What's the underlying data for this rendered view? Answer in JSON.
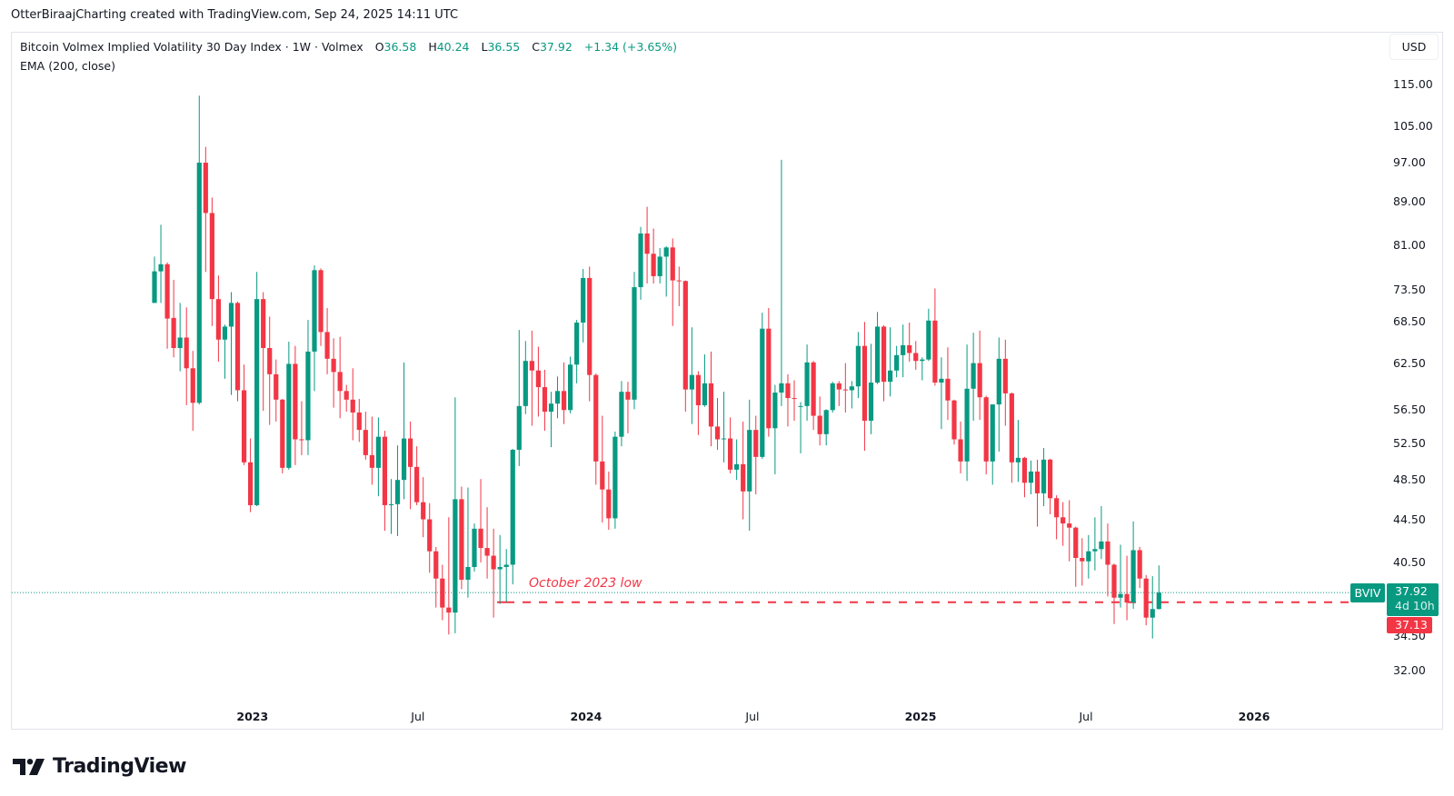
{
  "credit": "OtterBiraajCharting created with TradingView.com, Sep 24, 2025 14:11 UTC",
  "legend": {
    "symbol": "Bitcoin Volmex Implied Volatility 30 Day Index · 1W · Volmex",
    "o_label": "O",
    "o_value": "36.58",
    "h_label": "H",
    "h_value": "40.24",
    "l_label": "L",
    "l_value": "36.55",
    "c_label": "C",
    "c_value": "37.92",
    "change": "+1.34 (+3.65%)",
    "indicator": "EMA (200, close)"
  },
  "currency_button": "USD",
  "last_price": {
    "ticker": "BVIV",
    "price": "37.92",
    "countdown": "4d 10h"
  },
  "level_badge": "37.13",
  "annotation": "October 2023 low",
  "logo_text": "TradingView",
  "colors": {
    "up": "#089981",
    "down": "#f23645",
    "level_line": "#f23645",
    "last_price_line": "#089981"
  },
  "chart_data": {
    "type": "candlestick",
    "interval": "1W",
    "y_scale": "log",
    "ylim": [
      30.5,
      122
    ],
    "grid": false,
    "y_ticks": [
      "115.00",
      "105.00",
      "97.00",
      "89.00",
      "81.00",
      "73.50",
      "68.50",
      "62.50",
      "56.50",
      "52.50",
      "48.50",
      "44.50",
      "40.50",
      "34.50",
      "32.00"
    ],
    "x_ticks": [
      "2023",
      "Jul",
      "2024",
      "Jul",
      "2025",
      "Jul",
      "2026"
    ],
    "horizontal_line": {
      "value": 37.13,
      "label": "October 2023 low",
      "style": "dashed"
    },
    "last_value": 37.92,
    "ohlc": [
      [
        71.4,
        79.0,
        71.4,
        76.5
      ],
      [
        76.5,
        84.7,
        71.4,
        77.7
      ],
      [
        77.7,
        78.0,
        64.6,
        69.0
      ],
      [
        69.1,
        75.1,
        63.4,
        64.7
      ],
      [
        64.7,
        71.4,
        61.5,
        66.2
      ],
      [
        66.2,
        70.7,
        57.1,
        61.9
      ],
      [
        61.9,
        64.3,
        54.0,
        57.4
      ],
      [
        57.4,
        112.3,
        57.2,
        97.0
      ],
      [
        97.0,
        100.4,
        76.4,
        86.9
      ],
      [
        86.9,
        89.9,
        67.9,
        72.0
      ],
      [
        72.0,
        75.8,
        62.8,
        65.9
      ],
      [
        65.9,
        68.1,
        60.5,
        67.8
      ],
      [
        67.8,
        73.1,
        58.4,
        71.4
      ],
      [
        71.4,
        71.6,
        57.6,
        59.0
      ],
      [
        59.0,
        62.4,
        50.1,
        50.4
      ],
      [
        50.4,
        53.1,
        45.2,
        45.9
      ],
      [
        45.9,
        76.4,
        45.8,
        72.0
      ],
      [
        72.0,
        73.1,
        56.4,
        64.7
      ],
      [
        64.7,
        69.3,
        54.7,
        61.1
      ],
      [
        61.1,
        63.1,
        55.1,
        57.8
      ],
      [
        57.8,
        57.9,
        49.2,
        49.8
      ],
      [
        49.8,
        65.6,
        49.6,
        62.5
      ],
      [
        62.5,
        65.0,
        50.1,
        53.0
      ],
      [
        53.0,
        57.6,
        51.2,
        52.9
      ],
      [
        52.9,
        68.8,
        51.2,
        64.2
      ],
      [
        64.2,
        77.5,
        58.9,
        76.7
      ],
      [
        76.7,
        77.0,
        65.0,
        67.0
      ],
      [
        67.0,
        70.6,
        61.1,
        63.2
      ],
      [
        63.2,
        66.1,
        56.8,
        61.4
      ],
      [
        61.4,
        66.3,
        55.5,
        58.9
      ],
      [
        58.9,
        59.7,
        56.3,
        57.8
      ],
      [
        57.8,
        61.9,
        52.9,
        56.2
      ],
      [
        56.2,
        57.9,
        52.7,
        54.1
      ],
      [
        54.1,
        56.3,
        50.7,
        51.2
      ],
      [
        51.2,
        55.7,
        48.0,
        49.8
      ],
      [
        49.8,
        55.6,
        46.8,
        53.3
      ],
      [
        53.3,
        54.0,
        43.4,
        45.9
      ],
      [
        45.9,
        48.6,
        43.1,
        46.0
      ],
      [
        46.0,
        52.3,
        42.9,
        48.5
      ],
      [
        48.5,
        62.7,
        46.5,
        53.1
      ],
      [
        53.1,
        55.1,
        45.5,
        49.9
      ],
      [
        49.9,
        52.2,
        45.9,
        46.2
      ],
      [
        46.2,
        48.8,
        42.8,
        44.5
      ],
      [
        44.5,
        46.1,
        39.6,
        41.5
      ],
      [
        41.5,
        41.9,
        36.7,
        39.1
      ],
      [
        39.1,
        40.3,
        35.7,
        36.7
      ],
      [
        36.7,
        44.7,
        34.6,
        36.3
      ],
      [
        36.3,
        58.1,
        34.7,
        46.5
      ],
      [
        46.5,
        47.8,
        38.2,
        39.0
      ],
      [
        39.0,
        47.7,
        37.5,
        40.1
      ],
      [
        40.1,
        44.1,
        39.7,
        43.6
      ],
      [
        43.6,
        48.6,
        40.5,
        41.8
      ],
      [
        41.8,
        45.7,
        39.1,
        41.1
      ],
      [
        41.1,
        43.6,
        35.9,
        39.9
      ],
      [
        39.9,
        43.0,
        37.0,
        40.1
      ],
      [
        40.1,
        41.7,
        37.13,
        40.3
      ],
      [
        40.3,
        51.9,
        38.6,
        51.8
      ],
      [
        51.8,
        67.3,
        50.0,
        57.0
      ],
      [
        57.0,
        65.7,
        56.0,
        62.9
      ],
      [
        62.9,
        67.2,
        54.6,
        61.6
      ],
      [
        61.6,
        64.9,
        55.7,
        59.4
      ],
      [
        59.4,
        61.7,
        54.0,
        56.3
      ],
      [
        56.3,
        58.8,
        52.1,
        57.3
      ],
      [
        57.3,
        60.8,
        55.5,
        58.9
      ],
      [
        58.9,
        62.7,
        54.8,
        56.5
      ],
      [
        56.5,
        63.5,
        56.1,
        62.4
      ],
      [
        62.4,
        68.8,
        59.9,
        68.4
      ],
      [
        68.4,
        76.9,
        65.5,
        75.4
      ],
      [
        75.4,
        77.3,
        57.6,
        61.0
      ],
      [
        61.0,
        61.2,
        48.0,
        50.5
      ],
      [
        50.5,
        55.8,
        44.2,
        47.5
      ],
      [
        47.5,
        49.4,
        43.5,
        44.6
      ],
      [
        44.6,
        53.9,
        43.6,
        53.3
      ],
      [
        53.3,
        60.2,
        52.2,
        58.8
      ],
      [
        58.8,
        60.1,
        53.7,
        57.8
      ],
      [
        57.8,
        76.4,
        56.6,
        73.9
      ],
      [
        73.9,
        84.3,
        71.9,
        83.1
      ],
      [
        83.1,
        88.1,
        74.5,
        79.5
      ],
      [
        79.5,
        84.0,
        74.5,
        75.7
      ],
      [
        75.7,
        80.5,
        74.5,
        79.0
      ],
      [
        79.0,
        80.8,
        72.4,
        80.6
      ],
      [
        80.6,
        82.2,
        67.9,
        75.0
      ],
      [
        75.0,
        77.3,
        70.9,
        74.9
      ],
      [
        74.9,
        75.0,
        56.3,
        59.1
      ],
      [
        59.1,
        67.7,
        54.8,
        61.0
      ],
      [
        61.0,
        61.5,
        53.5,
        57.1
      ],
      [
        57.1,
        63.8,
        56.9,
        59.9
      ],
      [
        59.9,
        64.2,
        52.2,
        54.5
      ],
      [
        54.5,
        58.0,
        51.8,
        53.0
      ],
      [
        53.0,
        58.8,
        50.4,
        53.1
      ],
      [
        53.1,
        55.6,
        49.2,
        49.6
      ],
      [
        49.6,
        53.0,
        48.5,
        50.2
      ],
      [
        50.2,
        55.1,
        44.5,
        47.3
      ],
      [
        47.3,
        57.8,
        43.4,
        54.1
      ],
      [
        54.1,
        55.8,
        47.0,
        51.0
      ],
      [
        51.0,
        69.9,
        50.8,
        67.5
      ],
      [
        67.5,
        70.6,
        53.3,
        54.3
      ],
      [
        54.3,
        59.7,
        49.1,
        58.7
      ],
      [
        58.7,
        97.6,
        57.0,
        59.9
      ],
      [
        59.9,
        61.1,
        54.5,
        58.0
      ],
      [
        58.0,
        60.3,
        55.2,
        57.9
      ],
      [
        56.9,
        57.5,
        51.4,
        57.0
      ],
      [
        57.0,
        65.2,
        55.2,
        62.7
      ],
      [
        62.7,
        62.9,
        54.1,
        55.8
      ],
      [
        55.8,
        58.2,
        52.3,
        53.6
      ],
      [
        53.6,
        56.6,
        52.3,
        56.5
      ],
      [
        56.5,
        60.1,
        56.2,
        59.9
      ],
      [
        59.9,
        60.2,
        57.0,
        59.1
      ],
      [
        59.1,
        62.6,
        56.2,
        59.0
      ],
      [
        59.0,
        60.2,
        56.7,
        59.5
      ],
      [
        59.5,
        67.0,
        58.0,
        65.0
      ],
      [
        65.0,
        68.5,
        51.7,
        55.2
      ],
      [
        55.2,
        65.3,
        53.6,
        60.0
      ],
      [
        60.0,
        70.0,
        59.8,
        67.8
      ],
      [
        67.8,
        68.0,
        57.6,
        60.1
      ],
      [
        60.1,
        67.7,
        58.2,
        61.6
      ],
      [
        61.6,
        65.0,
        60.7,
        63.7
      ],
      [
        63.7,
        68.1,
        60.7,
        65.1
      ],
      [
        65.1,
        68.4,
        62.8,
        64.0
      ],
      [
        64.0,
        65.7,
        61.7,
        62.9
      ],
      [
        62.9,
        63.4,
        60.3,
        63.1
      ],
      [
        63.1,
        70.5,
        62.9,
        68.7
      ],
      [
        68.7,
        73.7,
        59.6,
        60.0
      ],
      [
        60.0,
        63.4,
        54.2,
        60.5
      ],
      [
        60.5,
        64.8,
        55.3,
        57.7
      ],
      [
        57.7,
        57.8,
        52.4,
        53.0
      ],
      [
        53.0,
        55.1,
        49.2,
        50.5
      ],
      [
        50.5,
        65.2,
        48.4,
        59.2
      ],
      [
        59.2,
        66.9,
        55.2,
        62.6
      ],
      [
        62.6,
        67.2,
        55.3,
        58.1
      ],
      [
        58.1,
        58.3,
        49.1,
        50.5
      ],
      [
        50.5,
        57.2,
        48.0,
        57.2
      ],
      [
        57.2,
        66.2,
        51.6,
        63.2
      ],
      [
        63.2,
        65.9,
        54.6,
        58.6
      ],
      [
        58.6,
        58.7,
        48.2,
        50.4
      ],
      [
        50.4,
        55.3,
        48.3,
        50.9
      ],
      [
        50.9,
        51.0,
        46.7,
        48.2
      ],
      [
        48.2,
        50.6,
        47.0,
        49.4
      ],
      [
        49.4,
        50.7,
        43.8,
        47.1
      ],
      [
        47.1,
        52.0,
        45.8,
        50.7
      ],
      [
        50.7,
        50.8,
        45.0,
        46.6
      ],
      [
        46.6,
        46.9,
        42.6,
        44.7
      ],
      [
        44.7,
        46.2,
        42.0,
        44.1
      ],
      [
        44.1,
        46.4,
        40.6,
        43.7
      ],
      [
        43.7,
        43.8,
        38.4,
        40.9
      ],
      [
        40.9,
        42.7,
        38.5,
        40.6
      ],
      [
        40.6,
        43.0,
        39.1,
        41.5
      ],
      [
        41.5,
        44.7,
        39.8,
        41.7
      ],
      [
        41.7,
        45.8,
        40.8,
        42.4
      ],
      [
        42.4,
        44.1,
        37.6,
        40.3
      ],
      [
        40.3,
        40.4,
        35.4,
        37.5
      ],
      [
        37.5,
        42.1,
        36.7,
        37.8
      ],
      [
        37.8,
        41.1,
        35.7,
        37.1
      ],
      [
        37.1,
        44.3,
        36.6,
        41.6
      ],
      [
        41.6,
        41.9,
        38.3,
        39.1
      ],
      [
        39.1,
        39.4,
        35.3,
        35.9
      ],
      [
        35.9,
        39.3,
        34.3,
        36.58
      ],
      [
        36.58,
        40.24,
        36.55,
        37.92
      ]
    ]
  }
}
